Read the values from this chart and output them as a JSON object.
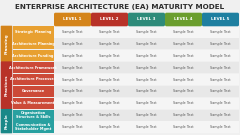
{
  "title": "ENTERPRISE ARCHITECTURE (EA) MATURITY MODEL",
  "title_color": "#2d2d2d",
  "background_color": "#f0f0f0",
  "levels": [
    "LEVEL 1",
    "LEVEL 2",
    "LEVEL 3",
    "LEVEL 4",
    "LEVEL 5"
  ],
  "level_colors": [
    "#d4841a",
    "#b83228",
    "#2e8b7a",
    "#6b9e2e",
    "#1e7fa0"
  ],
  "categories": [
    {
      "name": "Planning",
      "color": "#d4841a",
      "row_color": "#e8a030",
      "rows": [
        "Strategic Planning",
        "Architecture Planning",
        "Architecture Funding"
      ]
    },
    {
      "name": "Practices",
      "color": "#b83228",
      "row_color": "#cc4a38",
      "rows": [
        "Architecture Framework",
        "Architecture Processes",
        "Governance",
        "Value & Measurement"
      ]
    },
    {
      "name": "People",
      "color": "#1a8888",
      "row_color": "#28a0a0",
      "rows": [
        "Organisation\nStructure & Skills",
        "Communication &\nStakeholder Mgmt"
      ]
    }
  ],
  "cell_text": "Sample Text",
  "cell_bg_odd": "#e8e8e8",
  "cell_bg_even": "#f5f5f5"
}
